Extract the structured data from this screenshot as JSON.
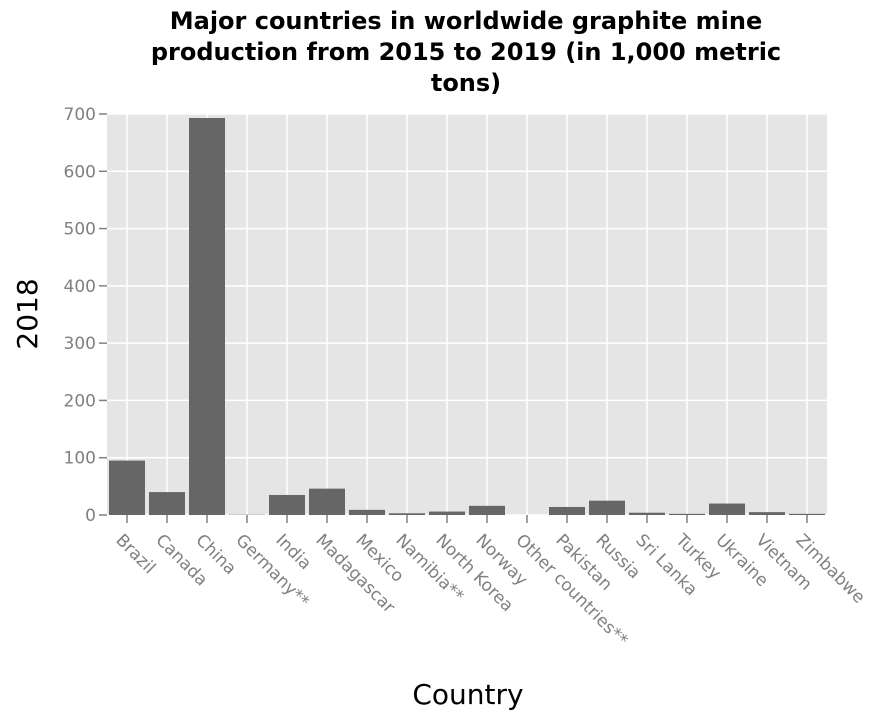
{
  "chart_data": {
    "type": "bar",
    "title_lines": [
      "Major countries in worldwide graphite mine",
      "production from 2015 to 2019 (in 1,000 metric",
      "tons)"
    ],
    "xlabel": "Country",
    "ylabel": "2018",
    "ylim": [
      0,
      700
    ],
    "yticks": [
      "0",
      "100",
      "200",
      "300",
      "400",
      "500",
      "600",
      "700"
    ],
    "grid": true,
    "categories": [
      "Brazil",
      "Canada",
      "China",
      "Germany**",
      "India",
      "Madagascar",
      "Mexico",
      "Namibia**",
      "North Korea",
      "Norway",
      "Other countries**",
      "Pakistan",
      "Russia",
      "Sri Lanka",
      "Turkey",
      "Ukraine",
      "Vietnam",
      "Zimbabwe"
    ],
    "values": [
      95,
      40,
      693,
      0.5,
      35,
      46,
      9,
      3,
      6,
      16,
      0,
      14,
      25,
      4,
      2,
      20,
      5,
      2
    ],
    "colors": {
      "bar": "#666666",
      "plot_bg": "#e5e5e5",
      "grid": "#ffffff",
      "tick": "#808080"
    }
  }
}
